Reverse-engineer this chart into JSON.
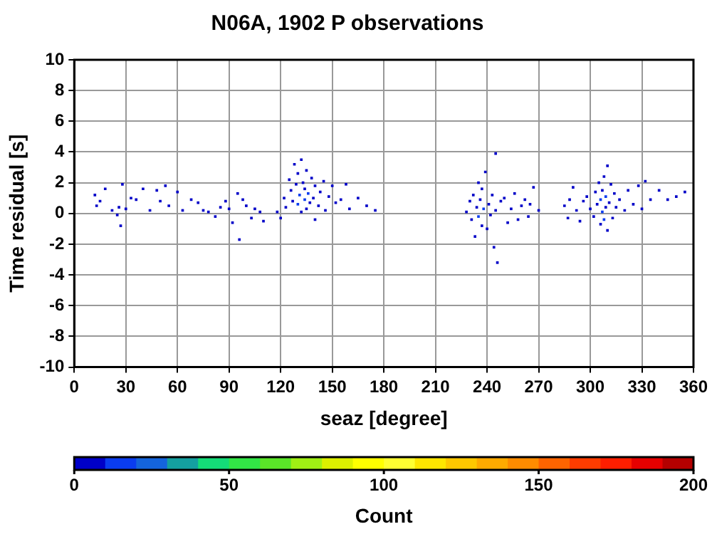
{
  "chart_data": {
    "type": "scatter",
    "title": "N06A, 1902 P observations",
    "xlabel": "seaz [degree]",
    "ylabel": "Time residual [s]",
    "clabel": "Count",
    "xlim": [
      0,
      360
    ],
    "xticks": [
      0,
      30,
      60,
      90,
      120,
      150,
      180,
      210,
      240,
      270,
      300,
      330,
      360
    ],
    "ylim": [
      -10,
      10
    ],
    "yticks": [
      -10,
      -8,
      -6,
      -4,
      -2,
      0,
      2,
      4,
      6,
      8,
      10
    ],
    "clim": [
      0,
      200
    ],
    "cticks": [
      0,
      50,
      100,
      150,
      200
    ],
    "grid": true,
    "legend": false,
    "marker": "square",
    "series": [
      {
        "x": [
          12,
          13,
          15,
          18,
          22,
          25,
          26,
          27,
          28,
          30,
          33,
          36,
          40,
          44,
          48,
          50,
          53,
          55,
          60,
          63,
          68,
          72,
          75,
          78,
          82,
          85,
          88,
          90,
          92,
          95,
          96,
          98,
          100,
          103,
          105,
          108,
          110,
          118,
          120,
          122,
          123,
          125,
          126,
          127,
          128,
          129,
          130,
          130,
          131,
          132,
          132,
          133,
          134,
          134,
          135,
          135,
          136,
          137,
          138,
          139,
          140,
          140,
          142,
          143,
          145,
          146,
          148,
          150,
          152,
          155,
          158,
          160,
          165,
          170,
          175,
          228,
          230,
          231,
          232,
          233,
          234,
          235,
          235,
          236,
          237,
          237,
          238,
          239,
          240,
          241,
          242,
          243,
          244,
          245,
          245,
          246,
          248,
          250,
          252,
          254,
          256,
          258,
          260,
          262,
          264,
          265,
          267,
          270,
          285,
          287,
          288,
          290,
          292,
          294,
          296,
          298,
          300,
          302,
          303,
          304,
          305,
          306,
          306,
          307,
          307,
          308,
          308,
          309,
          309,
          310,
          310,
          311,
          312,
          313,
          314,
          315,
          317,
          320,
          322,
          325,
          328,
          330,
          332,
          335,
          340,
          345,
          350,
          355
        ],
        "values": [
          1.2,
          0.5,
          0.8,
          1.6,
          0.2,
          -0.1,
          0.4,
          -0.8,
          1.9,
          0.3,
          1.0,
          0.9,
          1.6,
          0.2,
          1.5,
          0.8,
          1.8,
          0.5,
          1.4,
          0.2,
          0.9,
          0.7,
          0.2,
          0.1,
          -0.2,
          0.4,
          0.8,
          0.3,
          -0.6,
          1.3,
          -1.7,
          0.9,
          0.5,
          -0.3,
          0.3,
          0.1,
          -0.5,
          0.1,
          -0.3,
          1.0,
          0.4,
          2.2,
          1.5,
          0.8,
          3.2,
          1.9,
          2.6,
          0.6,
          1.2,
          3.5,
          0.1,
          2.0,
          0.9,
          1.6,
          2.8,
          0.3,
          1.3,
          0.7,
          2.3,
          1.0,
          -0.4,
          1.8,
          0.5,
          1.4,
          2.1,
          0.2,
          1.1,
          1.8,
          0.7,
          0.9,
          1.9,
          0.3,
          1.0,
          0.5,
          0.2,
          0.1,
          0.8,
          -0.4,
          1.2,
          -1.5,
          0.4,
          2.0,
          -0.2,
          0.9,
          1.6,
          -0.8,
          0.3,
          2.7,
          -1.0,
          0.6,
          -0.1,
          1.2,
          -2.2,
          3.9,
          0.2,
          -3.2,
          0.8,
          1.0,
          -0.6,
          0.3,
          1.3,
          -0.4,
          0.5,
          0.9,
          -0.2,
          0.6,
          1.7,
          0.2,
          0.5,
          -0.3,
          0.9,
          1.7,
          0.2,
          -0.5,
          0.8,
          1.1,
          0.3,
          -0.2,
          1.4,
          0.6,
          2.0,
          -0.7,
          0.9,
          1.5,
          0.1,
          2.4,
          -0.4,
          1.1,
          0.4,
          3.1,
          -1.1,
          0.7,
          1.9,
          -0.3,
          1.3,
          0.4,
          0.9,
          0.2,
          1.5,
          0.6,
          1.8,
          0.3,
          2.1,
          0.9,
          1.5,
          0.9,
          1.1,
          1.4
        ],
        "cvalues": [
          1,
          1,
          1,
          1,
          1,
          1,
          1,
          1,
          1,
          1,
          1,
          1,
          1,
          1,
          1,
          1,
          1,
          1,
          1,
          1,
          1,
          1,
          1,
          1,
          1,
          1,
          1,
          1,
          1,
          1,
          1,
          1,
          1,
          1,
          1,
          1,
          1,
          1,
          1,
          1,
          1,
          1,
          1,
          1,
          1,
          1,
          1,
          12,
          12,
          1,
          1,
          1,
          12,
          1,
          1,
          1,
          12,
          1,
          1,
          1,
          1,
          1,
          1,
          1,
          1,
          1,
          1,
          1,
          1,
          1,
          1,
          1,
          1,
          1,
          1,
          1,
          1,
          1,
          1,
          1,
          1,
          1,
          12,
          1,
          1,
          1,
          12,
          1,
          1,
          1,
          1,
          1,
          1,
          1,
          1,
          1,
          1,
          1,
          1,
          1,
          1,
          1,
          1,
          1,
          1,
          1,
          1,
          1,
          1,
          1,
          1,
          1,
          1,
          1,
          1,
          1,
          1,
          1,
          1,
          1,
          1,
          1,
          12,
          1,
          12,
          1,
          12,
          12,
          1,
          1,
          1,
          1,
          1,
          1,
          1,
          1,
          1,
          1,
          1,
          1,
          1,
          1,
          1,
          1,
          1,
          1,
          1,
          1
        ]
      }
    ]
  }
}
